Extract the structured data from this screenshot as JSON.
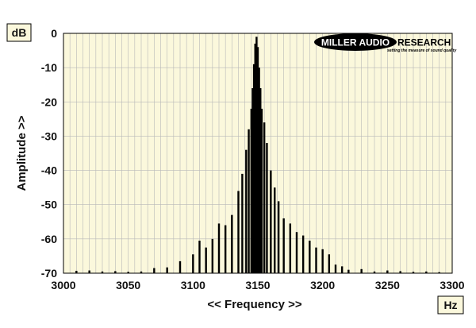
{
  "chart_data": {
    "type": "bar",
    "title": "",
    "xlabel": "<< Frequency >>",
    "ylabel": "Amplitude >>",
    "x_unit": "Hz",
    "y_unit": "dB",
    "xlim": [
      3000,
      3300
    ],
    "ylim": [
      -70,
      0
    ],
    "x_ticks": [
      3000,
      3050,
      3100,
      3150,
      3200,
      3250,
      3300
    ],
    "y_ticks": [
      0,
      -10,
      -20,
      -30,
      -40,
      -50,
      -60,
      -70
    ],
    "grid": true,
    "series": [
      {
        "x": [
          3010,
          3020,
          3030,
          3040,
          3050,
          3060,
          3070,
          3080,
          3090,
          3100,
          3105,
          3110,
          3115,
          3120,
          3125,
          3130,
          3135,
          3138,
          3141,
          3143,
          3145,
          3146,
          3147,
          3148,
          3149,
          3150,
          3151,
          3152,
          3153,
          3155,
          3157,
          3160,
          3163,
          3166,
          3170,
          3175,
          3180,
          3185,
          3190,
          3195,
          3200,
          3205,
          3210,
          3215,
          3220,
          3230,
          3240,
          3250,
          3260,
          3270,
          3280,
          3290
        ],
        "values": [
          -69.3,
          -69.2,
          -69.5,
          -69.4,
          -69.6,
          -69.5,
          -68.5,
          -68.3,
          -66.5,
          -64.5,
          -60.5,
          -62.5,
          -60.0,
          -55.5,
          -56.0,
          -53.0,
          -46.0,
          -41.0,
          -34.0,
          -28.0,
          -22.0,
          -16.0,
          -9.0,
          -3.0,
          -1.0,
          -4.0,
          -10.0,
          -16.0,
          -22.0,
          -26.0,
          -32.0,
          -40.0,
          -45.0,
          -49.0,
          -54.0,
          -55.5,
          -58.0,
          -59.0,
          -60.5,
          -62.5,
          -63.0,
          -64.5,
          -67.5,
          -68.0,
          -69.0,
          -68.8,
          -69.5,
          -69.2,
          -69.4,
          -69.6,
          -69.5,
          -69.7
        ]
      }
    ],
    "colors": {
      "plot_background": "#fbf8dc",
      "grid": "#b8b8b8",
      "bars": "#000000",
      "frame": "#000000"
    }
  },
  "logo": {
    "text_oval": "MILLER AUDIO",
    "text_after": "RESEARCH",
    "tagline": "setting the measure of sound quality"
  }
}
